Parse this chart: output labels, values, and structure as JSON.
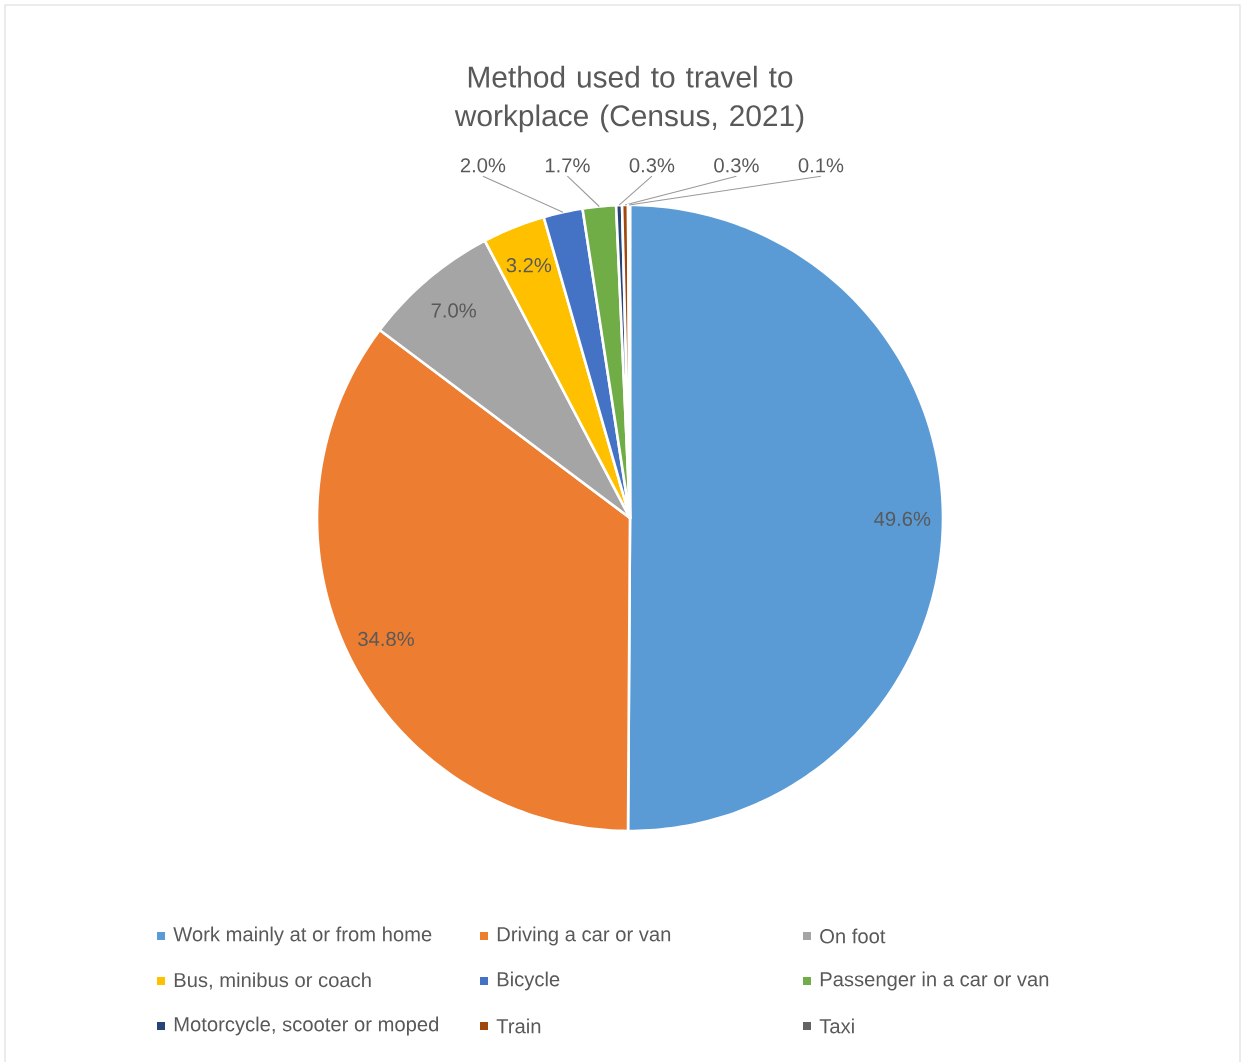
{
  "chart_data": {
    "type": "pie",
    "title": "Method used to travel to workplace (Census, 2021)",
    "categories": [
      "Work mainly at or from home",
      "Driving a car or van",
      "On foot",
      "Bus, minibus or coach",
      "Bicycle",
      "Passenger in a car or van",
      "Motorcycle, scooter or moped",
      "Train",
      "Taxi"
    ],
    "values": [
      49.6,
      34.8,
      7.0,
      3.2,
      2.0,
      1.7,
      0.3,
      0.3,
      0.1
    ],
    "value_labels": [
      "49.6%",
      "34.8%",
      "7.0%",
      "3.2%",
      "2.0%",
      "1.7%",
      "0.3%",
      "0.3%",
      "0.1%"
    ],
    "colors": [
      "#5b9bd5",
      "#ed7d31",
      "#a5a5a5",
      "#ffc000",
      "#4472c4",
      "#70ad47",
      "#264478",
      "#9e480e",
      "#636363"
    ],
    "legend": "bottom"
  }
}
